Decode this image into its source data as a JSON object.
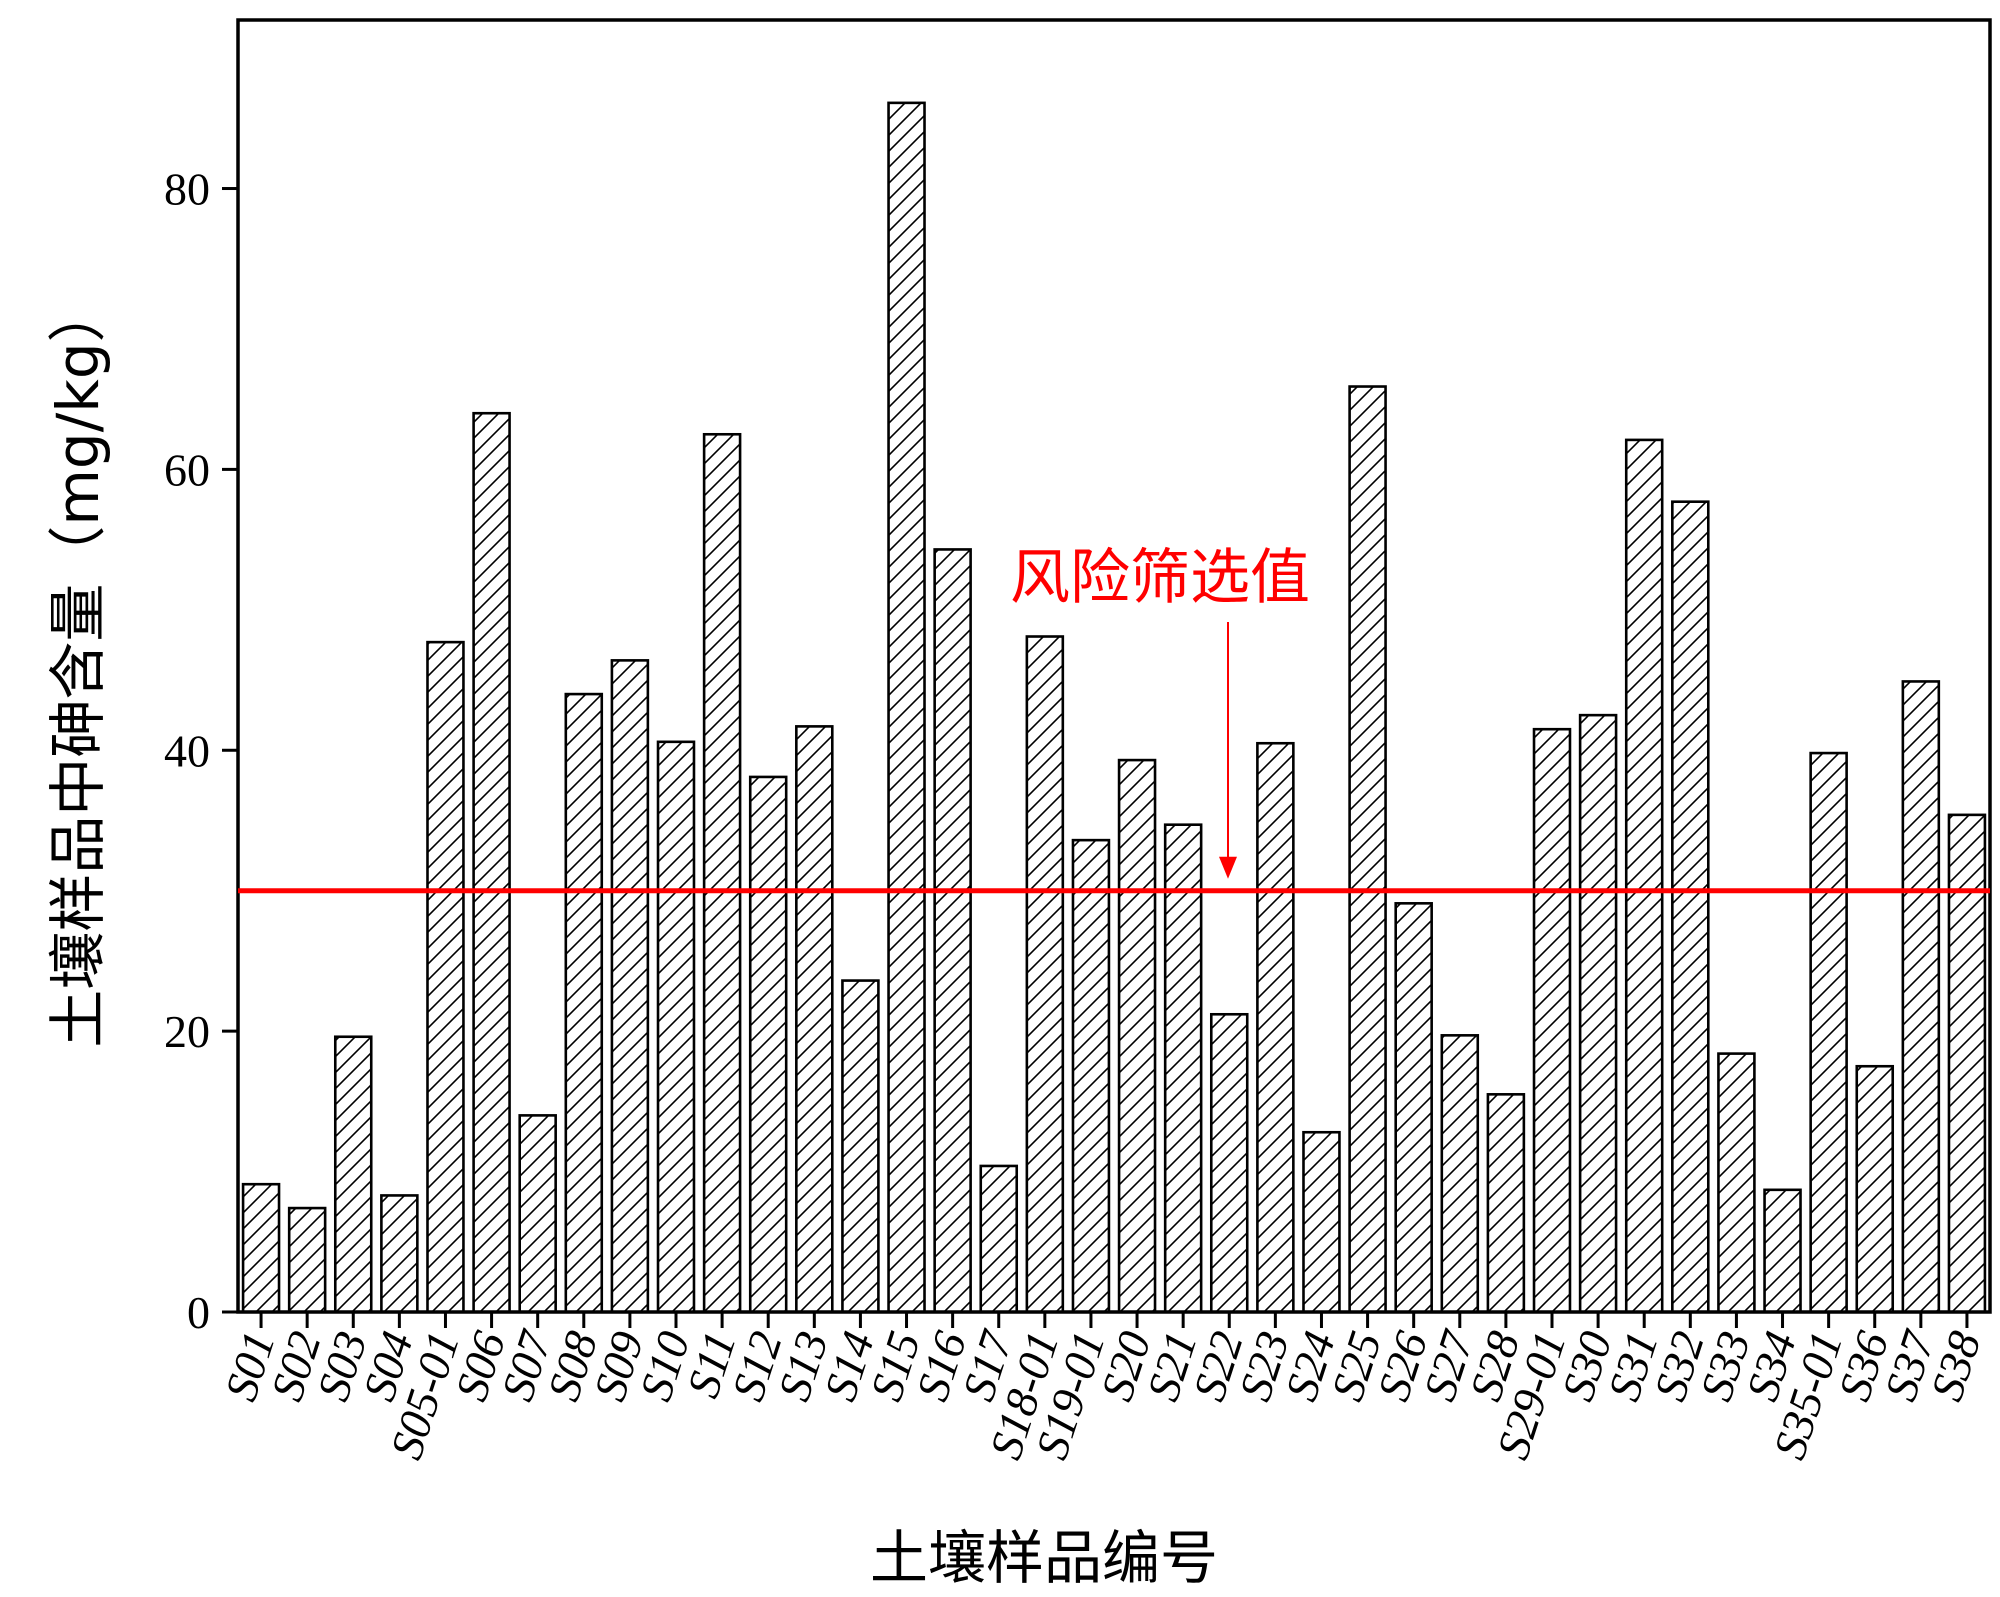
{
  "chart_data": {
    "type": "bar",
    "title": "",
    "xlabel": "土壤样品编号",
    "ylabel": "土壤样品中砷含量（mg/kg）",
    "ylim": [
      0,
      92
    ],
    "yticks": [
      0,
      20,
      40,
      60,
      80
    ],
    "grid": false,
    "bar_fill": "hatched diagonal",
    "categories": [
      "S01",
      "S02",
      "S03",
      "S04",
      "S05-01",
      "S06",
      "S07",
      "S08",
      "S09",
      "S10",
      "S11",
      "S12",
      "S13",
      "S14",
      "S15",
      "S16",
      "S17",
      "S18-01",
      "S19-01",
      "S20",
      "S21",
      "S22",
      "S23",
      "S24",
      "S25",
      "S26",
      "S27",
      "S28",
      "S29-01",
      "S30",
      "S31",
      "S32",
      "S33",
      "S34",
      "S35-01",
      "S36",
      "S37",
      "S38"
    ],
    "values": [
      9.1,
      7.4,
      19.6,
      8.3,
      47.7,
      64.0,
      14.0,
      44.0,
      46.4,
      40.6,
      62.5,
      38.1,
      41.7,
      23.6,
      86.1,
      54.3,
      10.4,
      48.1,
      33.6,
      39.3,
      34.7,
      21.2,
      40.5,
      12.8,
      65.9,
      29.1,
      19.7,
      15.5,
      41.5,
      42.5,
      62.1,
      57.7,
      18.4,
      8.7,
      39.8,
      17.5,
      44.9,
      35.4
    ],
    "reference_line": {
      "value": 30,
      "label": "风险筛选值",
      "color": "#ff0000"
    },
    "bar_stroke": "#000000",
    "bar_background": "#ffffff"
  }
}
